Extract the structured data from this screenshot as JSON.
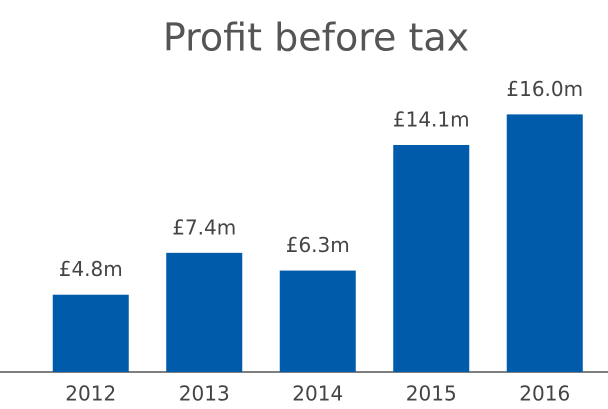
{
  "chart_data": {
    "type": "bar",
    "title": "Profit before tax",
    "categories": [
      "2012",
      "2013",
      "2014",
      "2015",
      "2016"
    ],
    "values": [
      4.8,
      7.4,
      6.3,
      14.1,
      16.0
    ],
    "value_labels": [
      "£4.8m",
      "£7.4m",
      "£6.3m",
      "£14.1m",
      "£16.0m"
    ],
    "color": "#005baa",
    "grid": false
  }
}
